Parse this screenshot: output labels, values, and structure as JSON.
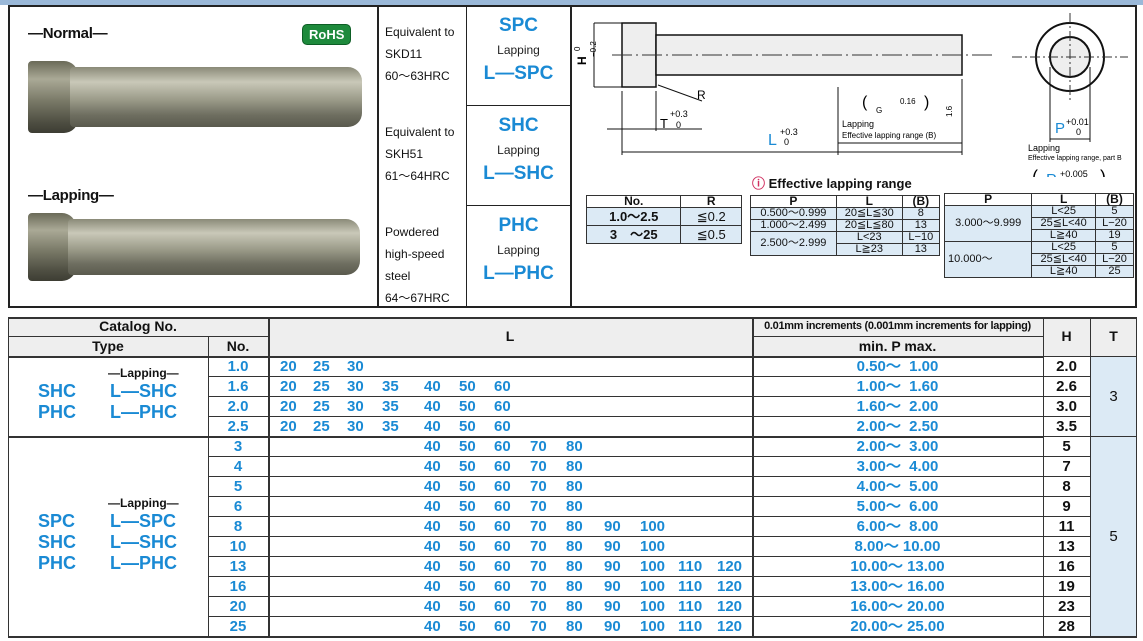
{
  "header": {
    "normal_label": "—Normal—",
    "lapping_label": "—Lapping—",
    "rohs_badge": "RoHS"
  },
  "materials": [
    {
      "desc": [
        "Equivalent to",
        "SKD11",
        "60～63HRC"
      ],
      "type": "SPC",
      "lapping_label": "Lapping",
      "lapping_type": "L—SPC"
    },
    {
      "desc": [
        "Equivalent to",
        "SKH51",
        "61～64HRC"
      ],
      "type": "SHC",
      "lapping_label": "Lapping",
      "lapping_type": "L—SHC"
    },
    {
      "desc": [
        "Powdered",
        "high-speed",
        "steel",
        "64～67HRC"
      ],
      "type": "PHC",
      "lapping_label": "Lapping",
      "lapping_type": "L—PHC"
    }
  ],
  "drawing": {
    "h_label": "H",
    "h_tol_top": "0",
    "h_tol_bot": "−0.2",
    "r_label": "R",
    "t_label": "T",
    "t_tol_top": "+0.3",
    "t_tol_bot": "0",
    "l_label": "L",
    "l_tol_top": "+0.3",
    "l_tol_bot": "0",
    "roughness_a": "0.16",
    "roughness_b": "1.6",
    "g_label": "G",
    "lapping": "Lapping",
    "eff_range": "Effective lapping range (B)",
    "p_label": "P",
    "p_tol_top": "+0.01",
    "p_tol_bot": "0",
    "eff_range_part": "Effective lapping range, part B",
    "p2_tol_top": "+0.005",
    "p2_tol_bot": "0"
  },
  "r_table": {
    "headers": [
      "No.",
      "R"
    ],
    "rows": [
      [
        "1.0～2.5",
        "≦0.2"
      ],
      [
        "3　～25",
        "≦0.5"
      ]
    ]
  },
  "eff_title": "Effective lapping range",
  "eff_table1": {
    "headers": [
      "P",
      "L",
      "(B)"
    ],
    "rows": [
      [
        "0.500～0.999",
        "20≦L≦30",
        "8"
      ],
      [
        "1.000～2.499",
        "20≦L≦80",
        "13"
      ],
      [
        "2.500～2.999",
        "L<23",
        "L−10"
      ],
      [
        "",
        "L≧23",
        "13"
      ]
    ]
  },
  "eff_table2": {
    "headers": [
      "P",
      "L",
      "(B)"
    ],
    "groups": [
      {
        "p": "3.000～9.999",
        "rows": [
          [
            "L<25",
            "5"
          ],
          [
            "25≦L<40",
            "L−20"
          ],
          [
            "L≧40",
            "19"
          ]
        ]
      },
      {
        "p": "10.000～",
        "rows": [
          [
            "L<25",
            "5"
          ],
          [
            "25≦L<40",
            "L−20"
          ],
          [
            "L≧40",
            "25"
          ]
        ]
      }
    ]
  },
  "main_table": {
    "h_catalog": "Catalog No.",
    "h_type": "Type",
    "h_no": "No.",
    "h_l": "L",
    "h_p_note": "0.01mm increments (0.001mm increments for lapping)",
    "h_p": "min. P max.",
    "h_h": "H",
    "h_t": "T",
    "groups": [
      {
        "lapping": "—Lapping—",
        "types": [
          [
            "SHC",
            "L—SHC"
          ],
          [
            "PHC",
            "L—PHC"
          ]
        ],
        "t": "3",
        "rows": [
          {
            "no": "1.0",
            "l": [
              "20",
              "25",
              "30"
            ],
            "p": "0.50～  1.00",
            "h": "2.0"
          },
          {
            "no": "1.6",
            "l": [
              "20",
              "25",
              "30",
              "35",
              "40",
              "50",
              "60"
            ],
            "p": "1.00～  1.60",
            "h": "2.6"
          },
          {
            "no": "2.0",
            "l": [
              "20",
              "25",
              "30",
              "35",
              "40",
              "50",
              "60"
            ],
            "p": "1.60～  2.00",
            "h": "3.0"
          },
          {
            "no": "2.5",
            "l": [
              "20",
              "25",
              "30",
              "35",
              "40",
              "50",
              "60"
            ],
            "p": "2.00～  2.50",
            "h": "3.5"
          }
        ]
      },
      {
        "lapping": "—Lapping—",
        "types": [
          [
            "SPC",
            "L—SPC"
          ],
          [
            "SHC",
            "L—SHC"
          ],
          [
            "PHC",
            "L—PHC"
          ]
        ],
        "t": "5",
        "rows": [
          {
            "no": "3",
            "l": [
              "40",
              "50",
              "60",
              "70",
              "80"
            ],
            "p": "2.00～  3.00",
            "h": "5"
          },
          {
            "no": "4",
            "l": [
              "40",
              "50",
              "60",
              "70",
              "80"
            ],
            "p": "3.00～  4.00",
            "h": "7"
          },
          {
            "no": "5",
            "l": [
              "40",
              "50",
              "60",
              "70",
              "80"
            ],
            "p": "4.00～  5.00",
            "h": "8"
          },
          {
            "no": "6",
            "l": [
              "40",
              "50",
              "60",
              "70",
              "80"
            ],
            "p": "5.00～  6.00",
            "h": "9"
          },
          {
            "no": "8",
            "l": [
              "40",
              "50",
              "60",
              "70",
              "80",
              "90",
              "100"
            ],
            "p": "6.00～  8.00",
            "h": "11"
          },
          {
            "no": "10",
            "l": [
              "40",
              "50",
              "60",
              "70",
              "80",
              "90",
              "100"
            ],
            "p": "8.00～ 10.00",
            "h": "13"
          },
          {
            "no": "13",
            "l": [
              "40",
              "50",
              "60",
              "70",
              "80",
              "90",
              "100",
              "110",
              "120"
            ],
            "p": "10.00～ 13.00",
            "h": "16"
          },
          {
            "no": "16",
            "l": [
              "40",
              "50",
              "60",
              "70",
              "80",
              "90",
              "100",
              "110",
              "120"
            ],
            "p": "13.00～ 16.00",
            "h": "19"
          },
          {
            "no": "20",
            "l": [
              "40",
              "50",
              "60",
              "70",
              "80",
              "90",
              "100",
              "110",
              "120"
            ],
            "p": "16.00～ 20.00",
            "h": "23"
          },
          {
            "no": "25",
            "l": [
              "40",
              "50",
              "60",
              "70",
              "80",
              "90",
              "100",
              "110",
              "120"
            ],
            "p": "20.00～ 25.00",
            "h": "28"
          }
        ]
      }
    ]
  },
  "colors": {
    "accent_blue": "#1a8ad4",
    "rohs_green": "#1e8a3c",
    "cell_fill": "#dceaf5"
  }
}
